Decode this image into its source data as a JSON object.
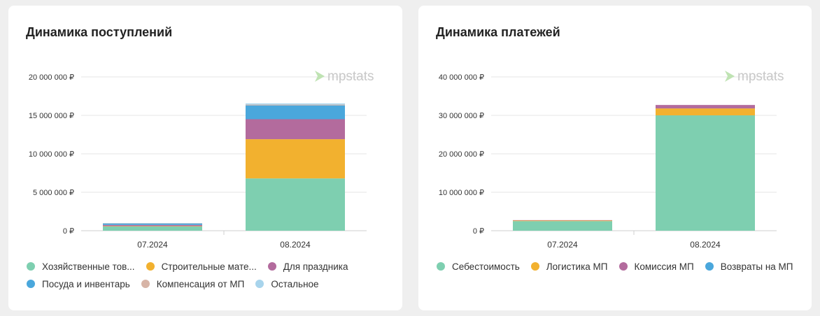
{
  "watermark": "mpstats",
  "charts": [
    {
      "id": "income",
      "title": "Динамика поступлений",
      "chart_data": {
        "type": "bar",
        "stacked": true,
        "categories": [
          "07.2024",
          "08.2024"
        ],
        "ylim": [
          0,
          20000000
        ],
        "yticks": [
          0,
          5000000,
          10000000,
          15000000,
          20000000
        ],
        "ytick_labels": [
          "0 ₽",
          "5 000 000 ₽",
          "10 000 000 ₽",
          "15 000 000 ₽",
          "20 000 000 ₽"
        ],
        "series": [
          {
            "name": "Хозяйственные товары",
            "legend_label": "Хозяйственные тов...",
            "color": "#7ecfb0",
            "values": [
              550000,
              6800000
            ]
          },
          {
            "name": "Строительные материалы",
            "legend_label": "Строительные мате...",
            "color": "#f2b12f",
            "values": [
              50000,
              5100000
            ]
          },
          {
            "name": "Для праздника",
            "legend_label": "Для праздника",
            "color": "#b36b9d",
            "values": [
              150000,
              2600000
            ]
          },
          {
            "name": "Посуда и инвентарь",
            "legend_label": "Посуда и инвентарь",
            "color": "#4aa7dc",
            "values": [
              200000,
              1800000
            ]
          },
          {
            "name": "Компенсация от МП",
            "legend_label": "Компенсация от МП",
            "color": "#d7b4a6",
            "values": [
              20000,
              100000
            ]
          },
          {
            "name": "Остальное",
            "legend_label": "Остальное",
            "color": "#a8d4ec",
            "values": [
              20000,
              150000
            ]
          }
        ],
        "grid": true,
        "legend_position": "bottom"
      }
    },
    {
      "id": "payments",
      "title": "Динамика платежей",
      "chart_data": {
        "type": "bar",
        "stacked": true,
        "categories": [
          "07.2024",
          "08.2024"
        ],
        "ylim": [
          0,
          40000000
        ],
        "yticks": [
          0,
          10000000,
          20000000,
          30000000,
          40000000
        ],
        "ytick_labels": [
          "0 ₽",
          "10 000 000 ₽",
          "20 000 000 ₽",
          "30 000 000 ₽",
          "40 000 000 ₽"
        ],
        "series": [
          {
            "name": "Себестоимость",
            "legend_label": "Себестоимость",
            "color": "#7ecfb0",
            "values": [
              2500000,
              30000000
            ]
          },
          {
            "name": "Логистика МП",
            "legend_label": "Логистика МП",
            "color": "#f2b12f",
            "values": [
              150000,
              1800000
            ]
          },
          {
            "name": "Комиссия МП",
            "legend_label": "Комиссия МП",
            "color": "#b36b9d",
            "values": [
              100000,
              900000
            ]
          },
          {
            "name": "Возвраты на МП",
            "legend_label": "Возвраты на МП",
            "color": "#4aa7dc",
            "values": [
              0,
              0
            ]
          }
        ],
        "grid": true,
        "legend_position": "bottom"
      }
    }
  ]
}
